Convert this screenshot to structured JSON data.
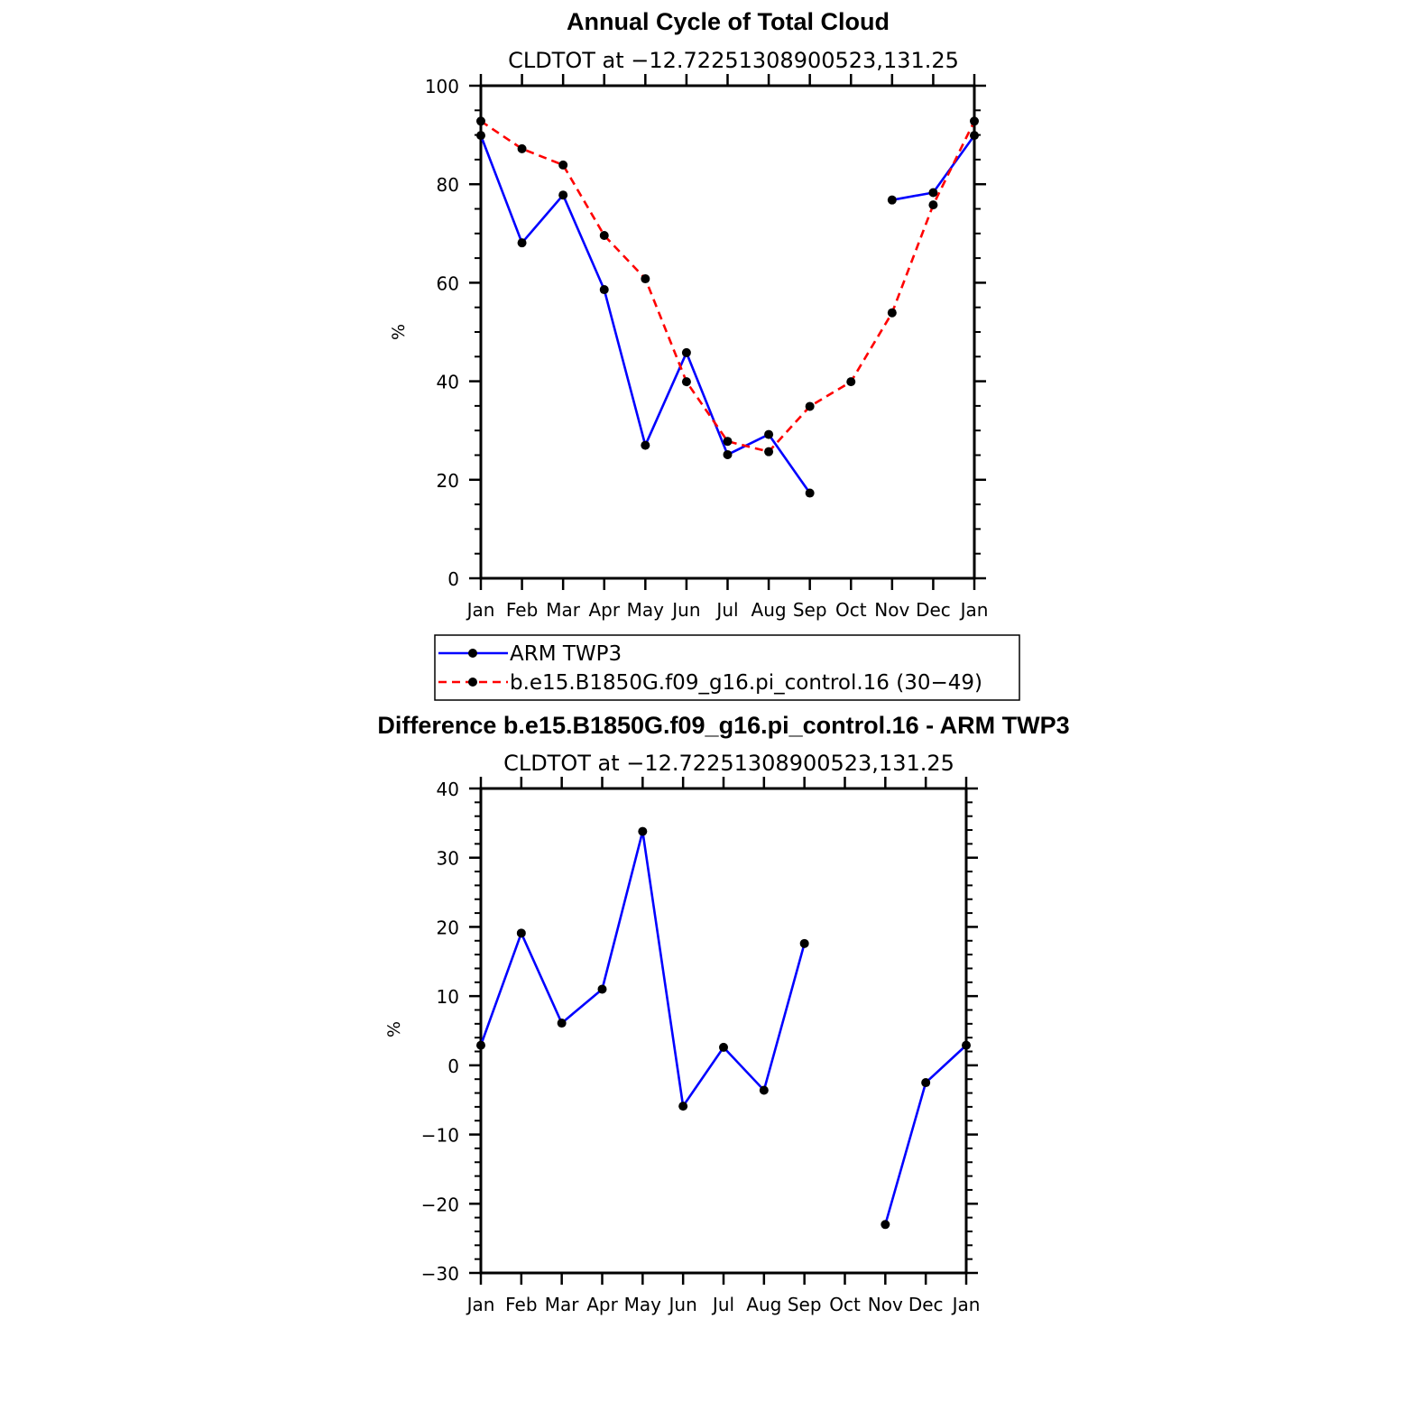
{
  "chart_data": [
    {
      "type": "line",
      "title": "Annual Cycle of Total Cloud",
      "subtitle": "CLDTOT at −12.72251308900523,131.25",
      "ylabel": "%",
      "xlabel": "",
      "categories": [
        "Jan",
        "Feb",
        "Mar",
        "Apr",
        "May",
        "Jun",
        "Jul",
        "Aug",
        "Sep",
        "Oct",
        "Nov",
        "Dec",
        "Jan"
      ],
      "ylim": [
        0,
        100
      ],
      "yticks": [
        0,
        20,
        40,
        60,
        80,
        100
      ],
      "ytick_labels": [
        "0",
        "20",
        "40",
        "60",
        "80",
        "100"
      ],
      "series": [
        {
          "name": "ARM TWP3",
          "color": "#0000ff",
          "dash": "solid",
          "values": [
            89.9,
            68.1,
            77.8,
            58.6,
            27.0,
            45.8,
            25.1,
            29.2,
            17.3,
            null,
            76.8,
            78.3,
            89.9
          ]
        },
        {
          "name": "b.e15.B1850G.f09_g16.pi_control.16 (30−49)",
          "color": "#ff0000",
          "dash": "dashed",
          "values": [
            92.8,
            87.2,
            83.9,
            69.6,
            60.8,
            39.9,
            27.8,
            25.7,
            34.9,
            39.9,
            53.9,
            75.8,
            92.8
          ]
        }
      ],
      "legend_position": "below"
    },
    {
      "type": "line",
      "title": "Difference b.e15.B1850G.f09_g16.pi_control.16 - ARM TWP3",
      "subtitle": "CLDTOT at −12.72251308900523,131.25",
      "ylabel": "%",
      "xlabel": "",
      "categories": [
        "Jan",
        "Feb",
        "Mar",
        "Apr",
        "May",
        "Jun",
        "Jul",
        "Aug",
        "Sep",
        "Oct",
        "Nov",
        "Dec",
        "Jan"
      ],
      "ylim": [
        -30,
        40
      ],
      "yticks": [
        -30,
        -20,
        -10,
        0,
        10,
        20,
        30,
        40
      ],
      "ytick_labels": [
        "−30",
        "−20",
        "−10",
        "0",
        "10",
        "20",
        "30",
        "40"
      ],
      "series": [
        {
          "color": "#0000ff",
          "dash": "solid",
          "values": [
            2.9,
            19.1,
            6.1,
            11.0,
            33.8,
            -5.9,
            2.6,
            -3.6,
            17.6,
            null,
            -23.0,
            -2.5,
            2.9
          ]
        }
      ]
    }
  ]
}
